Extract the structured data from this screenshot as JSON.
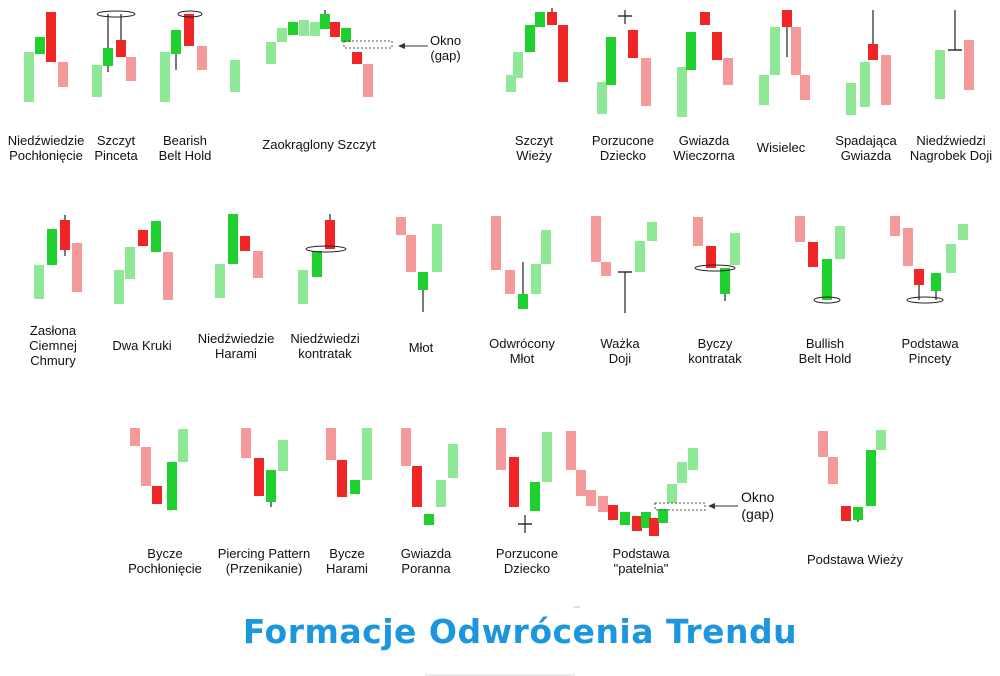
{
  "title": "Formacje Odwrócenia Trendu",
  "gap_label": [
    "Okno",
    "(gap)"
  ],
  "colors": {
    "bull_dark": "#1fd02e",
    "bull_light": "#8ee895",
    "bear_dark": "#f02626",
    "bear_light": "#f59a9a",
    "wick": "#222222",
    "title": "#1c96dc"
  },
  "patterns": [
    {
      "label": [
        "Niedźwiedzie",
        "Pochłonięcie"
      ]
    },
    {
      "label": [
        "Szczyt",
        "Pinceta"
      ]
    },
    {
      "label": [
        "Bearish",
        "Belt Hold"
      ]
    },
    {
      "label": [
        "Zaokrąglony Szczyt"
      ]
    },
    {
      "label": [
        "Szczyt",
        "Wieży"
      ]
    },
    {
      "label": [
        "Porzucone",
        "Dziecko"
      ]
    },
    {
      "label": [
        "Gwiazda",
        "Wieczorna"
      ]
    },
    {
      "label": [
        "Wisielec"
      ]
    },
    {
      "label": [
        "Spadająca",
        "Gwiazda"
      ]
    },
    {
      "label": [
        "Niedźwiedzi",
        "Nagrobek Doji"
      ]
    },
    {
      "label": [
        "Zasłona",
        "Ciemnej",
        "Chmury"
      ]
    },
    {
      "label": [
        "Dwa Kruki"
      ]
    },
    {
      "label": [
        "Niedźwiedzie",
        "Harami"
      ]
    },
    {
      "label": [
        "Niedźwiedzi",
        "kontratak"
      ]
    },
    {
      "label": [
        "Młot"
      ]
    },
    {
      "label": [
        "Odwrócony",
        "Młot"
      ]
    },
    {
      "label": [
        "Ważka",
        "Doji"
      ]
    },
    {
      "label": [
        "Byczy",
        "kontratak"
      ]
    },
    {
      "label": [
        "Bullish",
        "Belt Hold"
      ]
    },
    {
      "label": [
        "Podstawa",
        "Pincety"
      ]
    },
    {
      "label": [
        "Bycze",
        "Pochłonięcie"
      ]
    },
    {
      "label": [
        "Piercing Pattern",
        "(Przenikanie)"
      ]
    },
    {
      "label": [
        "Bycze",
        "Harami"
      ]
    },
    {
      "label": [
        "Gwiazda",
        "Poranna"
      ]
    },
    {
      "label": [
        "Porzucone",
        "Dziecko"
      ]
    },
    {
      "label": [
        "Podstawa",
        "\"patelnia\""
      ]
    },
    {
      "label": [
        "Podstawa Wieży"
      ]
    }
  ]
}
